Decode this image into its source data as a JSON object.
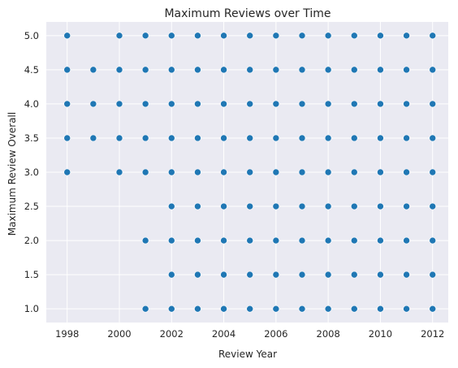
{
  "chart_data": {
    "type": "scatter",
    "title": "Maximum Reviews over Time",
    "xlabel": "Review Year",
    "ylabel": "Maximum Review Overall",
    "xlim": [
      1997.2,
      2012.6
    ],
    "ylim": [
      0.8,
      5.2
    ],
    "x_ticks": [
      "1998",
      "2000",
      "2002",
      "2004",
      "2006",
      "2008",
      "2010",
      "2012"
    ],
    "y_ticks": [
      "1.0",
      "1.5",
      "2.0",
      "2.5",
      "3.0",
      "3.5",
      "4.0",
      "4.5",
      "5.0"
    ],
    "grid": true,
    "background": "#eaeaf2",
    "grid_color": "#ffffff",
    "marker_color": "#1f77b4",
    "points": [
      [
        1998,
        3.0
      ],
      [
        1998,
        3.5
      ],
      [
        1998,
        4.0
      ],
      [
        1998,
        4.5
      ],
      [
        1998,
        5.0
      ],
      [
        1999,
        3.5
      ],
      [
        1999,
        4.0
      ],
      [
        1999,
        4.5
      ],
      [
        2000,
        3.0
      ],
      [
        2000,
        3.5
      ],
      [
        2000,
        4.0
      ],
      [
        2000,
        4.5
      ],
      [
        2000,
        5.0
      ],
      [
        2001,
        1.0
      ],
      [
        2001,
        2.0
      ],
      [
        2001,
        3.0
      ],
      [
        2001,
        3.5
      ],
      [
        2001,
        4.0
      ],
      [
        2001,
        4.5
      ],
      [
        2001,
        5.0
      ],
      [
        2002,
        1.0
      ],
      [
        2002,
        1.5
      ],
      [
        2002,
        2.0
      ],
      [
        2002,
        2.5
      ],
      [
        2002,
        3.0
      ],
      [
        2002,
        3.5
      ],
      [
        2002,
        4.0
      ],
      [
        2002,
        4.5
      ],
      [
        2002,
        5.0
      ],
      [
        2003,
        1.0
      ],
      [
        2003,
        1.5
      ],
      [
        2003,
        2.0
      ],
      [
        2003,
        2.5
      ],
      [
        2003,
        3.0
      ],
      [
        2003,
        3.5
      ],
      [
        2003,
        4.0
      ],
      [
        2003,
        4.5
      ],
      [
        2003,
        5.0
      ],
      [
        2004,
        1.0
      ],
      [
        2004,
        1.5
      ],
      [
        2004,
        2.0
      ],
      [
        2004,
        2.5
      ],
      [
        2004,
        3.0
      ],
      [
        2004,
        3.5
      ],
      [
        2004,
        4.0
      ],
      [
        2004,
        4.5
      ],
      [
        2004,
        5.0
      ],
      [
        2005,
        1.0
      ],
      [
        2005,
        1.5
      ],
      [
        2005,
        2.0
      ],
      [
        2005,
        2.5
      ],
      [
        2005,
        3.0
      ],
      [
        2005,
        3.5
      ],
      [
        2005,
        4.0
      ],
      [
        2005,
        4.5
      ],
      [
        2005,
        5.0
      ],
      [
        2006,
        1.0
      ],
      [
        2006,
        1.5
      ],
      [
        2006,
        2.0
      ],
      [
        2006,
        2.5
      ],
      [
        2006,
        3.0
      ],
      [
        2006,
        3.5
      ],
      [
        2006,
        4.0
      ],
      [
        2006,
        4.5
      ],
      [
        2006,
        5.0
      ],
      [
        2007,
        1.0
      ],
      [
        2007,
        1.5
      ],
      [
        2007,
        2.0
      ],
      [
        2007,
        2.5
      ],
      [
        2007,
        3.0
      ],
      [
        2007,
        3.5
      ],
      [
        2007,
        4.0
      ],
      [
        2007,
        4.5
      ],
      [
        2007,
        5.0
      ],
      [
        2008,
        1.0
      ],
      [
        2008,
        1.5
      ],
      [
        2008,
        2.0
      ],
      [
        2008,
        2.5
      ],
      [
        2008,
        3.0
      ],
      [
        2008,
        3.5
      ],
      [
        2008,
        4.0
      ],
      [
        2008,
        4.5
      ],
      [
        2008,
        5.0
      ],
      [
        2009,
        1.0
      ],
      [
        2009,
        1.5
      ],
      [
        2009,
        2.0
      ],
      [
        2009,
        2.5
      ],
      [
        2009,
        3.0
      ],
      [
        2009,
        3.5
      ],
      [
        2009,
        4.0
      ],
      [
        2009,
        4.5
      ],
      [
        2009,
        5.0
      ],
      [
        2010,
        1.0
      ],
      [
        2010,
        1.5
      ],
      [
        2010,
        2.0
      ],
      [
        2010,
        2.5
      ],
      [
        2010,
        3.0
      ],
      [
        2010,
        3.5
      ],
      [
        2010,
        4.0
      ],
      [
        2010,
        4.5
      ],
      [
        2010,
        5.0
      ],
      [
        2011,
        1.0
      ],
      [
        2011,
        1.5
      ],
      [
        2011,
        2.0
      ],
      [
        2011,
        2.5
      ],
      [
        2011,
        3.0
      ],
      [
        2011,
        3.5
      ],
      [
        2011,
        4.0
      ],
      [
        2011,
        4.5
      ],
      [
        2011,
        5.0
      ],
      [
        2012,
        1.0
      ],
      [
        2012,
        1.5
      ],
      [
        2012,
        2.0
      ],
      [
        2012,
        2.5
      ],
      [
        2012,
        3.0
      ],
      [
        2012,
        3.5
      ],
      [
        2012,
        4.0
      ],
      [
        2012,
        4.5
      ],
      [
        2012,
        5.0
      ]
    ]
  }
}
